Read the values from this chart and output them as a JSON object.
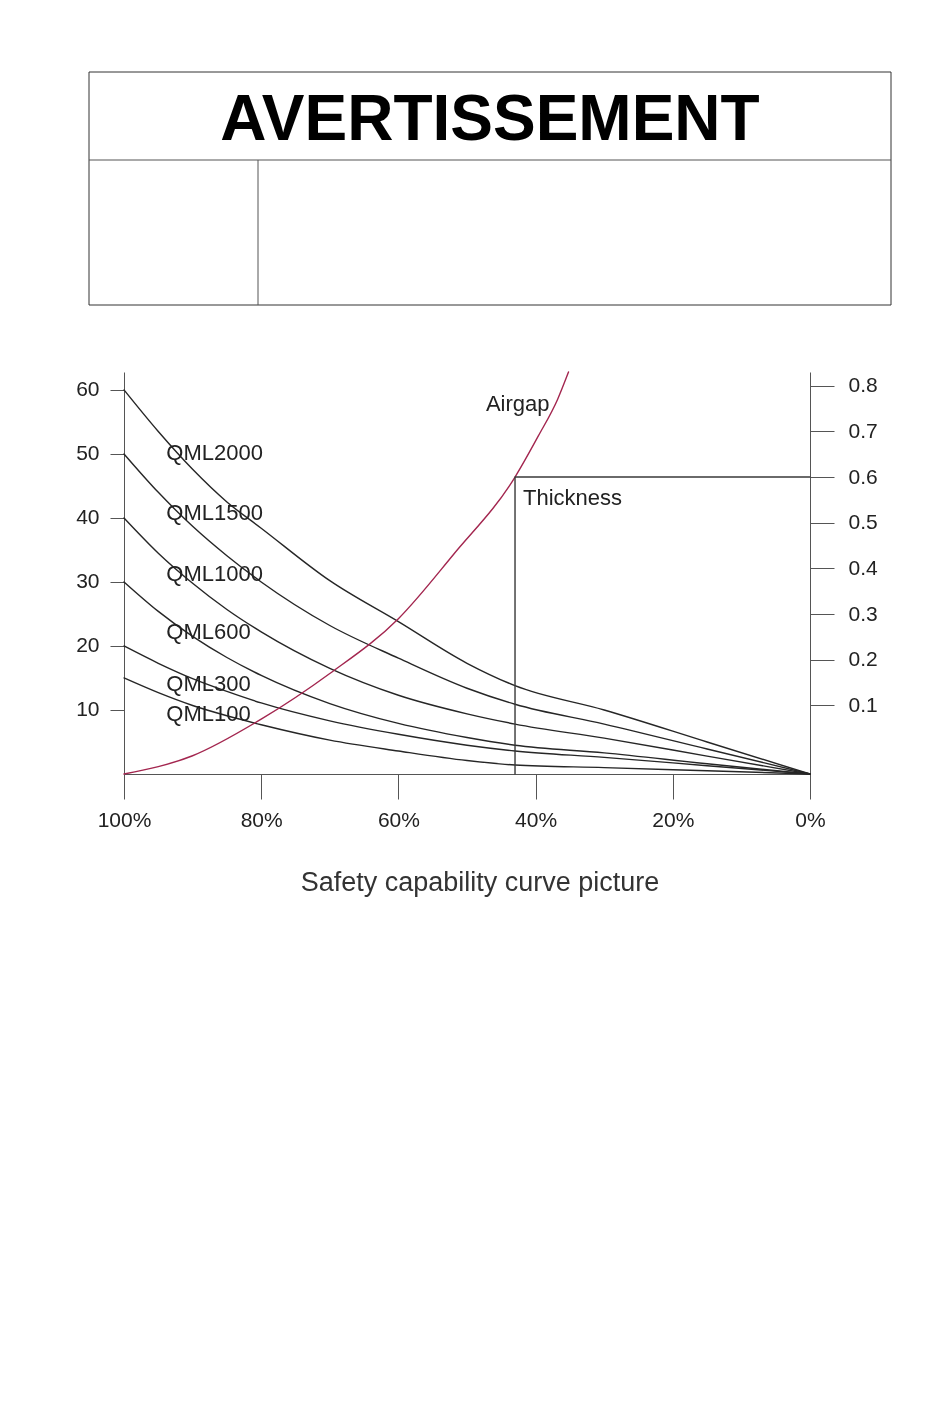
{
  "chart_data": [
    {
      "type": "other",
      "title": "AVERTISSEMENT"
    },
    {
      "type": "line",
      "x": [
        100,
        95,
        90,
        85,
        80,
        70,
        60,
        50,
        43,
        30,
        15,
        0
      ],
      "xlim": [
        100,
        0
      ],
      "xticks": [
        {
          "value": 100,
          "label": "100%"
        },
        {
          "value": 80,
          "label": "80%"
        },
        {
          "value": 60,
          "label": "60%"
        },
        {
          "value": 40,
          "label": "40%"
        },
        {
          "value": 20,
          "label": "20%"
        },
        {
          "value": 0,
          "label": "0%"
        }
      ],
      "ylim": [
        0,
        62.8
      ],
      "yticks": [
        10,
        20,
        30,
        40,
        50,
        60
      ],
      "y2lim": [
        -0.05,
        0.83
      ],
      "y2ticks": [
        0.1,
        0.2,
        0.3,
        0.4,
        0.5,
        0.6,
        0.7,
        0.8
      ],
      "series": [
        {
          "name": "QML2000",
          "color": "#262626",
          "values": [
            60,
            53.5,
            47.6,
            42.5,
            38.4,
            30.2,
            23.8,
            17.3,
            13.8,
            10.0,
            5.0,
            0
          ]
        },
        {
          "name": "QML1500",
          "color": "#262626",
          "values": [
            50,
            44.0,
            38.7,
            34.1,
            30.0,
            23.2,
            18.1,
            13.4,
            10.9,
            7.8,
            3.9,
            0
          ]
        },
        {
          "name": "QML1000",
          "color": "#262626",
          "values": [
            40,
            34.5,
            29.8,
            25.7,
            22.2,
            16.5,
            12.3,
            9.4,
            7.8,
            5.6,
            2.8,
            0
          ]
        },
        {
          "name": "QML600",
          "color": "#262626",
          "values": [
            30,
            25.4,
            21.5,
            18.2,
            15.4,
            11.0,
            7.9,
            5.7,
            4.5,
            3.3,
            1.6,
            0
          ]
        },
        {
          "name": "QML300",
          "color": "#262626",
          "values": [
            20,
            17.3,
            14.9,
            12.9,
            11.1,
            8.3,
            6.2,
            4.5,
            3.6,
            2.6,
            1.3,
            0
          ]
        },
        {
          "name": "QML100",
          "color": "#262626",
          "values": [
            15,
            12.7,
            10.7,
            9.1,
            7.7,
            5.3,
            3.6,
            2.1,
            1.4,
            1.0,
            0.5,
            0
          ]
        },
        {
          "name": "Airgap",
          "color": "#a3264f",
          "axis": "y2",
          "x": [
            100,
            90,
            80,
            70,
            60,
            52,
            43,
            39.6,
            36.8,
            35.2
          ],
          "values": [
            -0.05,
            -0.01,
            0.07,
            0.17,
            0.29,
            0.43,
            0.6,
            0.69,
            0.77,
            0.83
          ]
        },
        {
          "name": "Thickness",
          "color": "#3a3a3a",
          "axis": "y2",
          "x": [
            43,
            43,
            0
          ],
          "values": [
            -0.05,
            0.6,
            0.6
          ]
        }
      ],
      "annotations": [
        "Safety capability curve picture"
      ]
    }
  ]
}
